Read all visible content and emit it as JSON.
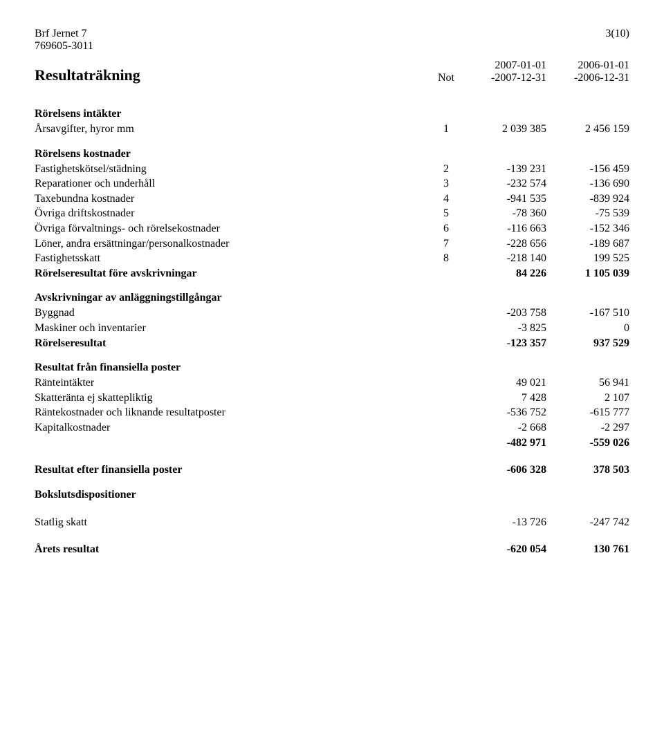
{
  "header": {
    "org_name": "Brf Jernet 7",
    "org_number": "769605-3011",
    "page_number": "3(10)"
  },
  "title": "Resultaträkning",
  "column_note": "Not",
  "periods": {
    "col1_start": "2007-01-01",
    "col1_end": "-2007-12-31",
    "col2_start": "2006-01-01",
    "col2_end": "-2006-12-31"
  },
  "sections": {
    "intakter": {
      "title": "Rörelsens intäkter",
      "rows": [
        {
          "label": "Årsavgifter, hyror mm",
          "note": "1",
          "v1": "2 039 385",
          "v2": "2 456 159"
        }
      ]
    },
    "kostnader": {
      "title": "Rörelsens kostnader",
      "rows": [
        {
          "label": "Fastighetskötsel/städning",
          "note": "2",
          "v1": "-139 231",
          "v2": "-156 459"
        },
        {
          "label": "Reparationer och underhåll",
          "note": "3",
          "v1": "-232 574",
          "v2": "-136 690"
        },
        {
          "label": "Taxebundna kostnader",
          "note": "4",
          "v1": "-941 535",
          "v2": "-839 924"
        },
        {
          "label": "Övriga driftskostnader",
          "note": "5",
          "v1": "-78 360",
          "v2": "-75 539"
        },
        {
          "label": "Övriga förvaltnings- och rörelsekostnader",
          "note": "6",
          "v1": "-116 663",
          "v2": "-152 346"
        },
        {
          "label": "Löner, andra ersättningar/personalkostnader",
          "note": "7",
          "v1": "-228 656",
          "v2": "-189 687"
        },
        {
          "label": "Fastighetsskatt",
          "note": "8",
          "v1": "-218 140",
          "v2": "199 525"
        }
      ],
      "subtotal": {
        "label": "Rörelseresultat före avskrivningar",
        "v1": "84 226",
        "v2": "1 105 039"
      }
    },
    "avskrivningar": {
      "title": "Avskrivningar av anläggningstillgångar",
      "rows": [
        {
          "label": "Byggnad",
          "v1": "-203 758",
          "v2": "-167 510"
        },
        {
          "label": "Maskiner och inventarier",
          "v1": "-3 825",
          "v2": "0"
        }
      ],
      "subtotal": {
        "label": "Rörelseresultat",
        "v1": "-123 357",
        "v2": "937 529"
      }
    },
    "finansiella": {
      "title": "Resultat från finansiella poster",
      "rows": [
        {
          "label": "Ränteintäkter",
          "v1": "49 021",
          "v2": "56 941"
        },
        {
          "label": "Skatteränta ej skattepliktig",
          "v1": "7 428",
          "v2": "2 107"
        },
        {
          "label": "Räntekostnader och liknande resultatposter",
          "v1": "-536 752",
          "v2": "-615 777"
        },
        {
          "label": "Kapitalkostnader",
          "v1": "-2 668",
          "v2": "-2 297"
        }
      ],
      "sum_row": {
        "v1": "-482 971",
        "v2": "-559 026"
      },
      "result_after": {
        "label": "Resultat efter finansiella poster",
        "v1": "-606 328",
        "v2": "378 503"
      }
    },
    "bokslut": {
      "title": "Bokslutsdispositioner"
    },
    "skatt": {
      "row": {
        "label": "Statlig skatt",
        "v1": "-13 726",
        "v2": "-247 742"
      }
    },
    "resultat": {
      "row": {
        "label": "Årets resultat",
        "v1": "-620 054",
        "v2": "130 761"
      }
    }
  }
}
